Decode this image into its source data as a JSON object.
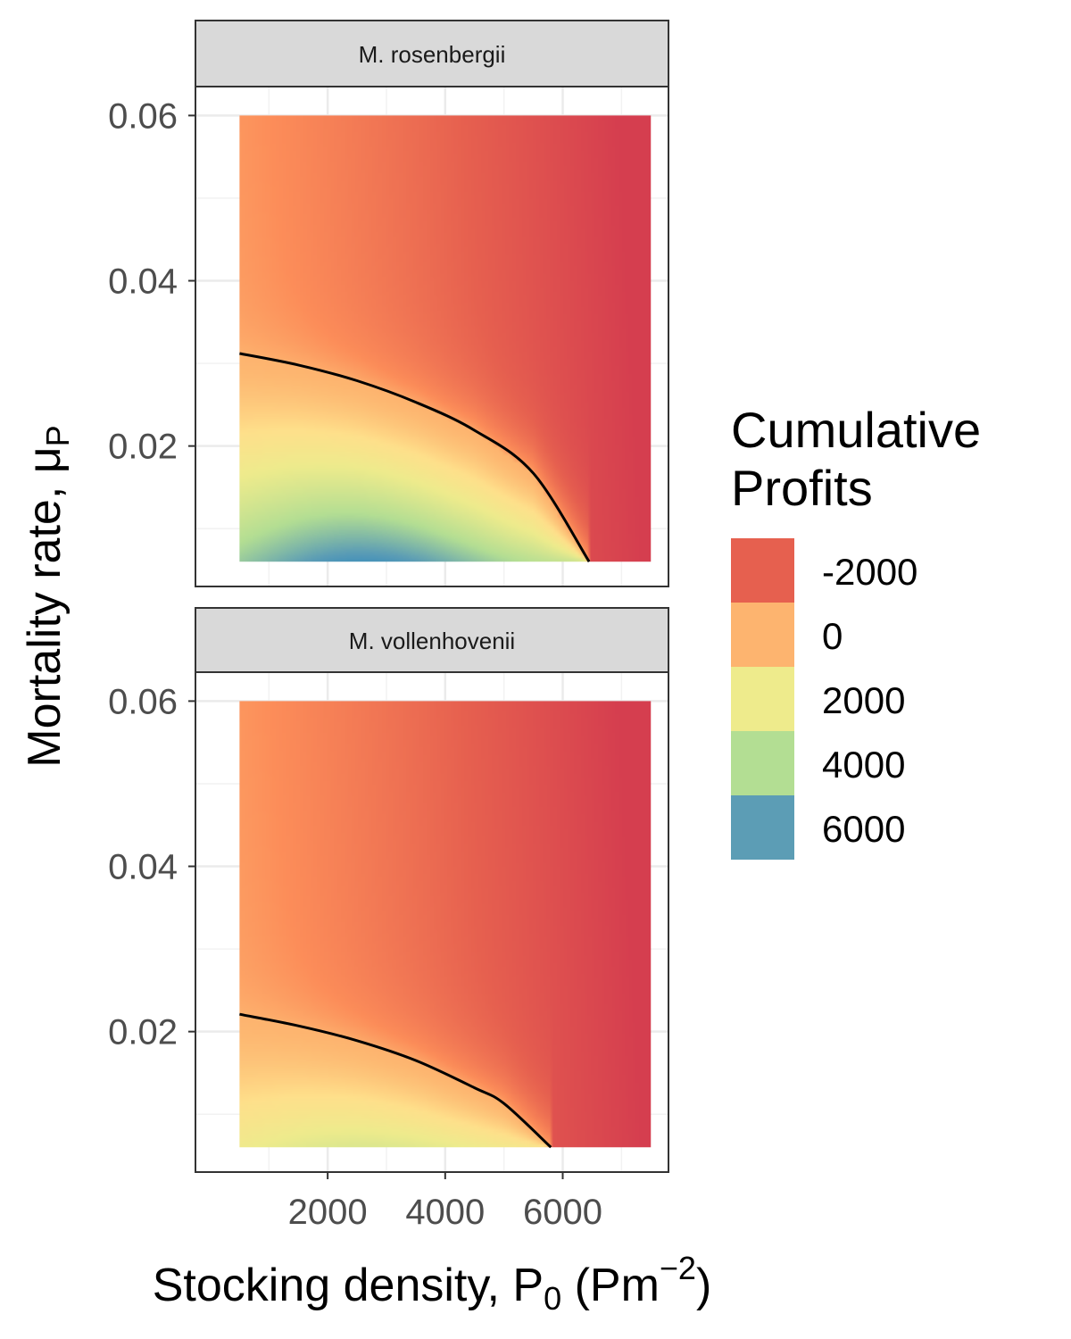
{
  "chart_data": {
    "type": "heatmap",
    "x_label": {
      "main": "Stocking density, P",
      "sub": "0",
      "after": " (Pm",
      "sup": "−2",
      "close": ")"
    },
    "y_label": {
      "main": "Mortality rate, μ",
      "sub": "P"
    },
    "x_range": [
      500,
      7500
    ],
    "y_range": [
      0.006,
      0.06
    ],
    "x_view": [
      -250,
      7800
    ],
    "y_view": [
      0.003,
      0.0635
    ],
    "x_ticks": [
      2000,
      4000,
      6000
    ],
    "x_tick_labels": [
      "2000",
      "4000",
      "6000"
    ],
    "y_ticks": [
      0.02,
      0.04,
      0.06
    ],
    "y_tick_labels": [
      "0.02",
      "0.04",
      "0.06"
    ],
    "legend": {
      "title_lines": [
        "Cumulative",
        "Profits"
      ],
      "entries": [
        {
          "label": "-2000",
          "color": "#e6604f"
        },
        {
          "label": "0",
          "color": "#fdb46f"
        },
        {
          "label": "2000",
          "color": "#eeeb8c"
        },
        {
          "label": "4000",
          "color": "#b3de93"
        },
        {
          "label": "6000",
          "color": "#5c9db5"
        }
      ],
      "placement": "right"
    },
    "color_scale": [
      {
        "value": -3200,
        "color": "#d53e4f"
      },
      {
        "value": -2000,
        "color": "#e6604f"
      },
      {
        "value": -700,
        "color": "#fc8d59"
      },
      {
        "value": 0,
        "color": "#fdb46f"
      },
      {
        "value": 1000,
        "color": "#fee08b"
      },
      {
        "value": 2000,
        "color": "#eeeb8c"
      },
      {
        "value": 4000,
        "color": "#b3de93"
      },
      {
        "value": 6000,
        "color": "#5c9db5"
      },
      {
        "value": 7000,
        "color": "#3288bd"
      }
    ],
    "panels": [
      {
        "name": "M. rosenbergii",
        "zero_contour": [
          [
            500,
            0.0312
          ],
          [
            1500,
            0.0298
          ],
          [
            2500,
            0.0279
          ],
          [
            3500,
            0.0253
          ],
          [
            4500,
            0.0219
          ],
          [
            5500,
            0.0167
          ],
          [
            6450,
            0.006
          ]
        ],
        "profit_model": {
          "peak_x": 2600,
          "peak_value": 6500,
          "peak_y": 0.006
        }
      },
      {
        "name": "M. vollenhovenii",
        "zero_contour": [
          [
            500,
            0.0221
          ],
          [
            1500,
            0.0207
          ],
          [
            2500,
            0.0189
          ],
          [
            3500,
            0.0165
          ],
          [
            4500,
            0.0132
          ],
          [
            5000,
            0.0113
          ],
          [
            5800,
            0.006
          ]
        ],
        "profit_model": {
          "peak_x": 2600,
          "peak_value": 2600,
          "peak_y": 0.006
        }
      }
    ]
  }
}
